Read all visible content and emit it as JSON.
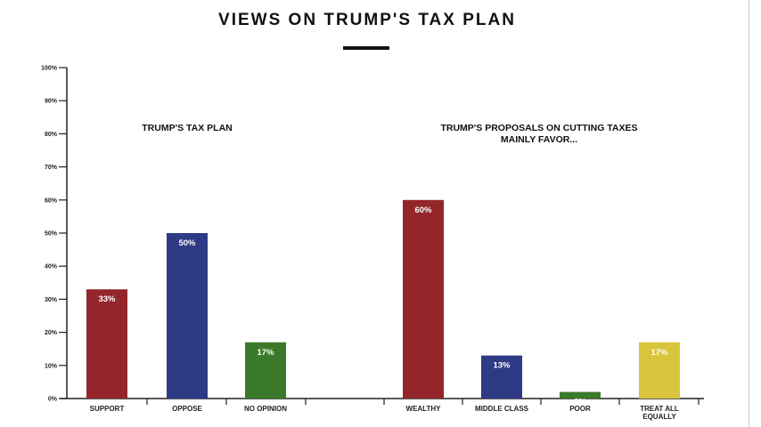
{
  "page": {
    "title": "VIEWS ON TRUMP'S TAX PLAN"
  },
  "chart_data": {
    "type": "bar",
    "title": "VIEWS ON TRUMP'S TAX PLAN",
    "xlabel": "",
    "ylabel": "",
    "ylim": [
      0,
      100
    ],
    "y_ticks": [
      "0%",
      "10%",
      "20%",
      "30%",
      "40%",
      "50%",
      "60%",
      "70%",
      "80%",
      "90%",
      "100%"
    ],
    "grid": false,
    "groups": [
      {
        "label": "TRUMP'S TAX PLAN",
        "categories": [
          "SUPPORT",
          "OPPOSE",
          "NO OPINION"
        ],
        "values": [
          33,
          50,
          17
        ],
        "value_labels": [
          "33%",
          "50%",
          "17%"
        ],
        "colors": [
          "#93262b",
          "#2e3a86",
          "#3b7a2a"
        ]
      },
      {
        "label": "TRUMP'S PROPOSALS ON CUTTING TAXES MAINLY FAVOR...",
        "label_lines": [
          "TRUMP'S PROPOSALS ON CUTTING TAXES",
          "MAINLY FAVOR..."
        ],
        "categories": [
          "WEALTHY",
          "MIDDLE CLASS",
          "POOR",
          "TREAT ALL EQUALLY"
        ],
        "category_lines": [
          [
            "WEALTHY"
          ],
          [
            "MIDDLE CLASS"
          ],
          [
            "POOR"
          ],
          [
            "TREAT ALL",
            "EQUALLY"
          ]
        ],
        "values": [
          60,
          13,
          2,
          17
        ],
        "value_labels": [
          "60%",
          "13%",
          "2%",
          "17%"
        ],
        "colors": [
          "#93262b",
          "#2e3a86",
          "#3b7a2a",
          "#d8c53b"
        ]
      }
    ]
  }
}
